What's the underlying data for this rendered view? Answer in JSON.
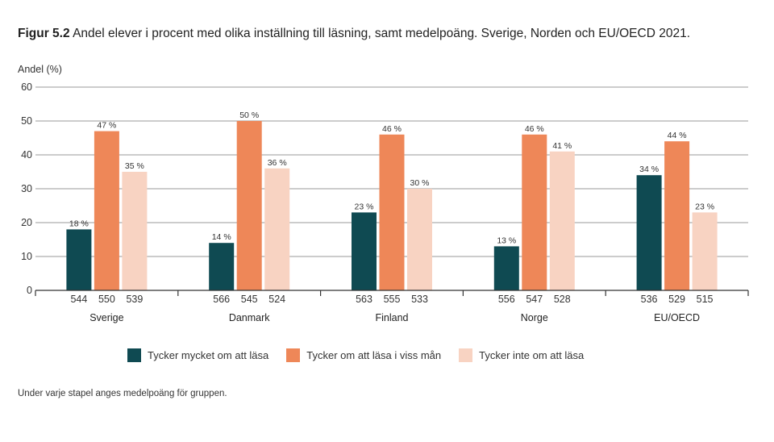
{
  "title": {
    "prefix": "Figur 5.2",
    "text": "Andel elever i procent med olika inställning till läsning, samt medelpoäng. Sverige, Norden och EU/OECD 2021."
  },
  "footnote": "Under varje stapel anges medelpoäng för gruppen.",
  "chart_data": {
    "type": "bar",
    "ylabel": "Andel (%)",
    "xlabel": "",
    "ylim": [
      0,
      60
    ],
    "yticks": [
      0,
      10,
      20,
      30,
      40,
      50,
      60
    ],
    "grid": true,
    "legend_position": "bottom",
    "categories": [
      "Sverige",
      "Danmark",
      "Finland",
      "Norge",
      "EU/OECD"
    ],
    "series": [
      {
        "name": "Tycker mycket om att läsa",
        "color": "#0f4a52",
        "values": [
          18,
          14,
          23,
          13,
          34
        ],
        "value_labels": [
          "18 %",
          "14 %",
          "23 %",
          "13 %",
          "34 %"
        ],
        "scores": [
          "544",
          "566",
          "563",
          "556",
          "536"
        ]
      },
      {
        "name": "Tycker om att läsa i viss mån",
        "color": "#ee8758",
        "values": [
          47,
          50,
          46,
          46,
          44
        ],
        "value_labels": [
          "47 %",
          "50 %",
          "46 %",
          "46 %",
          "44 %"
        ],
        "scores": [
          "550",
          "545",
          "555",
          "547",
          "529"
        ]
      },
      {
        "name": "Tycker inte om att läsa",
        "color": "#f8d3c2",
        "values": [
          35,
          36,
          30,
          41,
          23
        ],
        "value_labels": [
          "35 %",
          "36 %",
          "30 %",
          "41 %",
          "23 %"
        ],
        "scores": [
          "539",
          "524",
          "533",
          "528",
          "515"
        ]
      }
    ]
  }
}
